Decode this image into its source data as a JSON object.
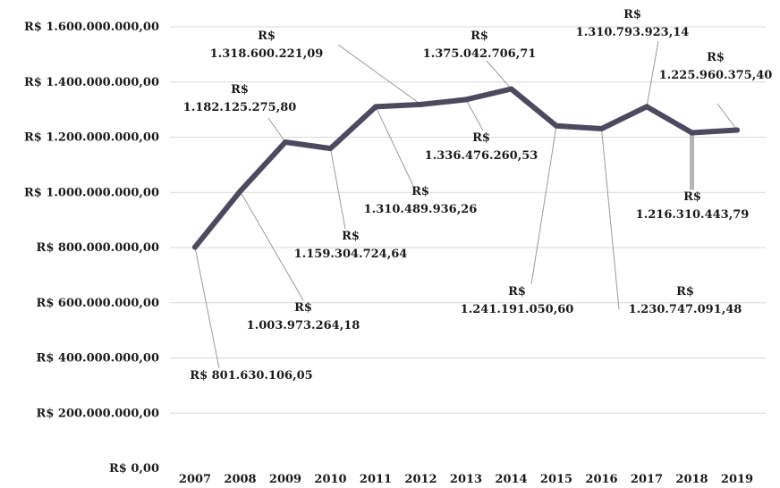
{
  "chart_data": {
    "type": "line",
    "categories": [
      "2007",
      "2008",
      "2009",
      "2010",
      "2011",
      "2012",
      "2013",
      "2014",
      "2015",
      "2016",
      "2017",
      "2018",
      "2019"
    ],
    "series": [
      {
        "values": [
          801630106.05,
          1003973264.18,
          1182125275.8,
          1159304724.64,
          1310489936.26,
          1318600221.09,
          1336476260.53,
          1375042706.71,
          1241191050.6,
          1230747091.48,
          1310793923.14,
          1216310443.79,
          1225960375.4
        ]
      }
    ],
    "data_labels": [
      [
        "R$ 801.630.106,05"
      ],
      [
        "R$",
        "1.003.973.264,18"
      ],
      [
        "R$",
        "1.182.125.275,80"
      ],
      [
        "R$",
        "1.159.304.724,64"
      ],
      [
        "R$",
        "1.310.489.936,26"
      ],
      [
        "R$",
        "1.318.600.221,09"
      ],
      [
        "R$",
        "1.336.476.260,53"
      ],
      [
        "R$",
        "1.375.042.706,71"
      ],
      [
        "R$",
        "1.241.191.050,60"
      ],
      [
        "R$",
        "1.230.747.091,48"
      ],
      [
        "R$",
        "1.310.793.923,14"
      ],
      [
        "R$",
        "1.216.310.443,79"
      ],
      [
        "R$",
        "1.225.960.375,40"
      ]
    ],
    "y_ticks": [
      "R$ 0,00",
      "R$ 200.000.000,00",
      "R$ 400.000.000,00",
      "R$ 600.000.000,00",
      "R$ 800.000.000,00",
      "R$ 1.000.000.000,00",
      "R$ 1.200.000.000,00",
      "R$ 1.400.000.000,00",
      "R$ 1.600.000.000,00"
    ],
    "ylim": [
      0,
      1600000000
    ],
    "grid": true,
    "line_color": "#4b4a5e",
    "title": "",
    "xlabel": "",
    "ylabel": ""
  }
}
